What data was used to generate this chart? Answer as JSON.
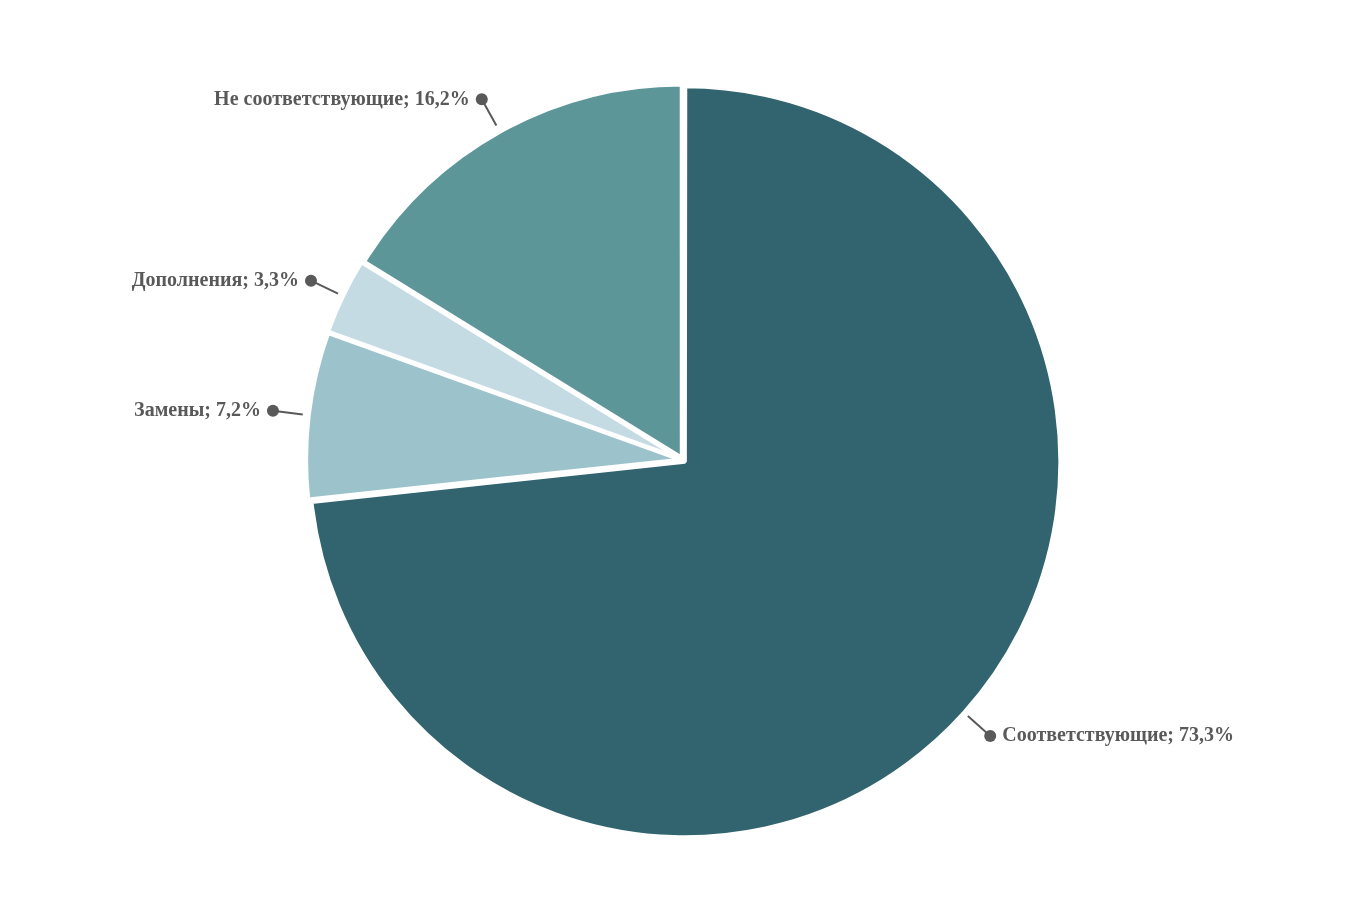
{
  "chart_data": {
    "type": "pie",
    "categories": [
      "Соответствующие",
      "Замены",
      "Дополнения",
      "Не соответствующие"
    ],
    "values": [
      73.3,
      7.2,
      3.3,
      16.2
    ],
    "value_labels": [
      "73,3%",
      "7,2%",
      "3,3%",
      "16,2%"
    ],
    "colors": [
      "#31646e",
      "#9cc3cc",
      "#c5dbe3",
      "#5d9699"
    ],
    "legend": false
  }
}
